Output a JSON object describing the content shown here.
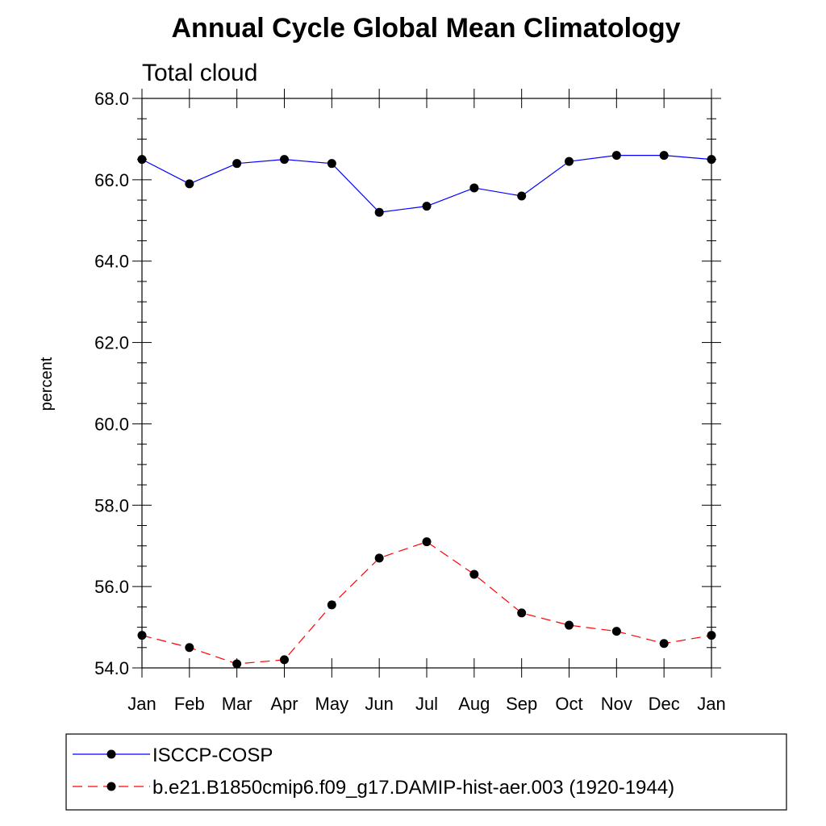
{
  "chart_data": {
    "type": "line",
    "title": "Annual Cycle Global Mean Climatology",
    "subtitle": "Total cloud",
    "xlabel": "",
    "ylabel": "percent",
    "categories": [
      "Jan",
      "Feb",
      "Mar",
      "Apr",
      "May",
      "Jun",
      "Jul",
      "Aug",
      "Sep",
      "Oct",
      "Nov",
      "Dec",
      "Jan"
    ],
    "ylim": [
      54.0,
      68.0
    ],
    "yticks": [
      "54.0",
      "56.0",
      "58.0",
      "60.0",
      "62.0",
      "64.0",
      "66.0",
      "68.0"
    ],
    "grid": false,
    "legend_position": "bottom",
    "series": [
      {
        "name": "ISCCP-COSP",
        "color": "#0000ff",
        "line_style": "solid",
        "marker": "filled-circle",
        "values": [
          66.5,
          65.9,
          66.4,
          66.5,
          66.4,
          65.2,
          65.35,
          65.8,
          65.6,
          66.45,
          66.6,
          66.6,
          66.5
        ]
      },
      {
        "name": "b.e21.B1850cmip6.f09_g17.DAMIP-hist-aer.003 (1920-1944)",
        "color": "#ff0000",
        "line_style": "dashed",
        "marker": "filled-circle",
        "values": [
          54.8,
          54.5,
          54.1,
          54.2,
          55.55,
          56.7,
          57.1,
          56.3,
          55.35,
          55.05,
          54.9,
          54.6,
          54.8
        ]
      }
    ]
  }
}
